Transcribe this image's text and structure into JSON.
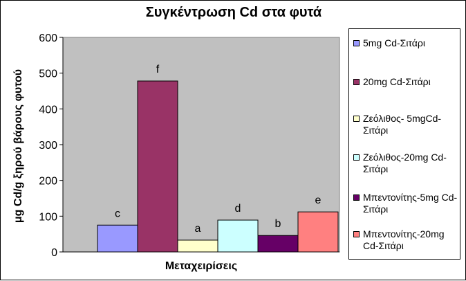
{
  "chart_data": {
    "type": "bar",
    "title": "Συγκέντρωση Cd στα φυτά",
    "xlabel": "Μεταχειρίσεις",
    "ylabel": "μg Cd/g ξηρού βάρους φυτού",
    "ylim": [
      0,
      600
    ],
    "yticks": [
      0,
      100,
      200,
      300,
      400,
      500,
      600
    ],
    "grid": false,
    "legend_position": "right",
    "plot_background": "#c0c0c0",
    "series": [
      {
        "name": "5mg Cd-Σιτάρι",
        "value": 75,
        "label": "c",
        "color": "#9999ff"
      },
      {
        "name": "20mg Cd-Σιτάρι",
        "value": 478,
        "label": "f",
        "color": "#993366"
      },
      {
        "name": "Ζεόλιθος- 5mgCd-Σιτάρι",
        "value": 33,
        "label": "a",
        "color": "#ffffcc"
      },
      {
        "name": "Ζεόλιθος-20mg Cd-Σιτάρι",
        "value": 89,
        "label": "d",
        "color": "#ccffff"
      },
      {
        "name": "Μπεντονίτης-5mg Cd-Σιτάρι",
        "value": 46,
        "label": "b",
        "color": "#660066"
      },
      {
        "name": "Μπεντονίτης-20mg Cd-Σιτάρι",
        "value": 112,
        "label": "e",
        "color": "#ff8080"
      }
    ]
  }
}
